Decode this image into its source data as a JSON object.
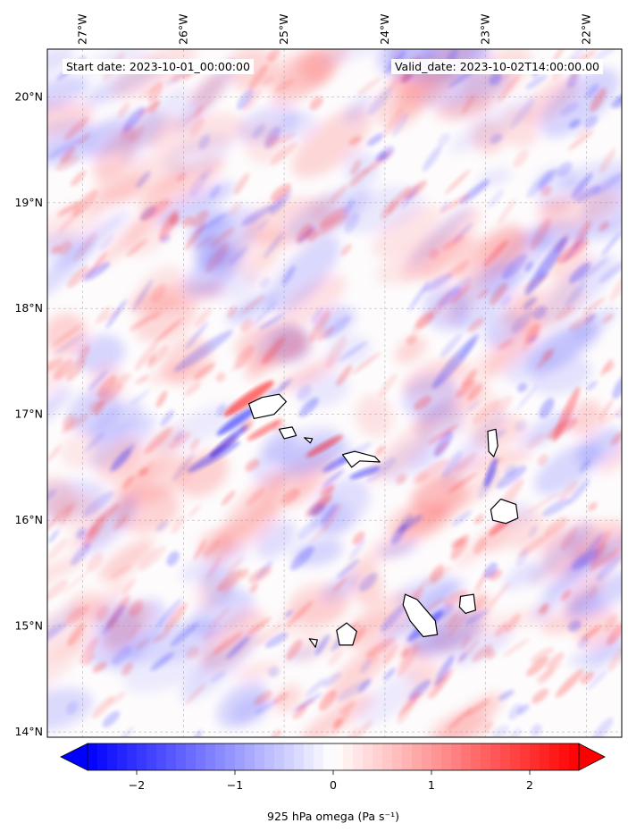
{
  "header": {
    "start_date": "Start date: 2023-10-01_00:00:00",
    "valid_date": "Valid_date: 2023-10-02T14:00:00.00"
  },
  "map": {
    "type": "heatmap",
    "extent": {
      "lon": [
        -27.35,
        -21.65
      ],
      "lat": [
        13.95,
        20.45
      ]
    },
    "longitude_ticks": [
      {
        "value": -27,
        "label": "27°W"
      },
      {
        "value": -26,
        "label": "26°W"
      },
      {
        "value": -25,
        "label": "25°W"
      },
      {
        "value": -24,
        "label": "24°W"
      },
      {
        "value": -23,
        "label": "23°W"
      },
      {
        "value": -22,
        "label": "22°W"
      }
    ],
    "latitude_ticks": [
      {
        "value": 20,
        "label": "20°N"
      },
      {
        "value": 19,
        "label": "19°N"
      },
      {
        "value": 18,
        "label": "18°N"
      },
      {
        "value": 17,
        "label": "17°N"
      },
      {
        "value": 16,
        "label": "16°N"
      },
      {
        "value": 15,
        "label": "15°N"
      },
      {
        "value": 14,
        "label": "14°N"
      }
    ],
    "gridlines": true,
    "islands": [
      {
        "name": "Santo Antão",
        "lon": -25.17,
        "lat": 17.05
      },
      {
        "name": "São Vicente",
        "lon": -24.97,
        "lat": 16.83
      },
      {
        "name": "Santa Luzia",
        "lon": -24.75,
        "lat": 16.76
      },
      {
        "name": "São Nicolau",
        "lon": -24.25,
        "lat": 16.6
      },
      {
        "name": "Sal",
        "lon": -22.93,
        "lat": 16.74
      },
      {
        "name": "Boa Vista",
        "lon": -22.82,
        "lat": 16.09
      },
      {
        "name": "Maio",
        "lon": -23.17,
        "lat": 15.2
      },
      {
        "name": "Santiago",
        "lon": -23.64,
        "lat": 15.08
      },
      {
        "name": "Fogo",
        "lon": -24.38,
        "lat": 14.92
      },
      {
        "name": "Brava",
        "lon": -24.71,
        "lat": 14.85
      }
    ]
  },
  "colorbar": {
    "min": -2.5,
    "max": 2.5,
    "ticks": [
      -2,
      -1,
      0,
      1,
      2
    ],
    "tick_labels": [
      "−2",
      "−1",
      "0",
      "1",
      "2"
    ],
    "label": "925 hPa omega (Pa s⁻¹)",
    "extend": "both",
    "colormap": "bwr",
    "colors": {
      "negative": "#0000ff",
      "zero": "#ffffff",
      "positive": "#ff0000"
    }
  }
}
